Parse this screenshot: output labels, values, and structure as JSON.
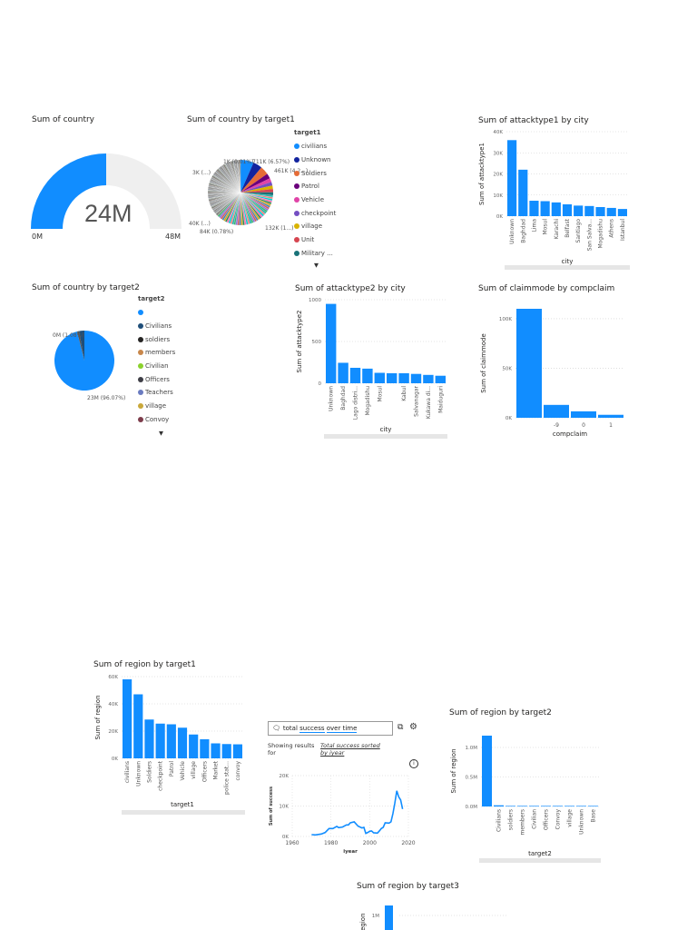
{
  "accent": "#118DFF",
  "gauge": {
    "title": "Sum of country",
    "value": "24M",
    "min": "0M",
    "max": "48M",
    "value_num": 24,
    "max_num": 48
  },
  "pie1": {
    "title": "Sum of country by target1",
    "legend_title": "target1",
    "legend": [
      {
        "label": "civilians",
        "color": "#118DFF"
      },
      {
        "label": "Unknown",
        "color": "#12239E"
      },
      {
        "label": "Soldiers",
        "color": "#E66C37"
      },
      {
        "label": "Patrol",
        "color": "#6B007B"
      },
      {
        "label": "Vehicle",
        "color": "#E044A7"
      },
      {
        "label": "checkpoint",
        "color": "#744EC2"
      },
      {
        "label": "village",
        "color": "#D9B300"
      },
      {
        "label": "Unit",
        "color": "#D64550"
      },
      {
        "label": "Military ...",
        "color": "#197278"
      }
    ],
    "labels": [
      "711K (6.57%)",
      "461K (4.2...)",
      "132K (1...)",
      "84K (0.78%)",
      "40K (...)",
      "3K (...)",
      "1K (0.01%)"
    ]
  },
  "pie2": {
    "title": "Sum of country by target2",
    "legend_title": "target2",
    "legend": [
      {
        "label": "",
        "color": "#118DFF"
      },
      {
        "label": "Civilians",
        "color": "#1F4E79"
      },
      {
        "label": "soldiers",
        "color": "#252423"
      },
      {
        "label": "members",
        "color": "#C8874B"
      },
      {
        "label": "Civilian",
        "color": "#8AD12C"
      },
      {
        "label": "Officers",
        "color": "#3E3E46"
      },
      {
        "label": "Teachers",
        "color": "#6A7BC0"
      },
      {
        "label": "village",
        "color": "#C9A83A"
      },
      {
        "label": "Convoy",
        "color": "#7D3C4B"
      }
    ],
    "labels": [
      "0M (1.08%)",
      "23M (96.07%)"
    ],
    "percent_main": 96.07,
    "percent_second": 1.08
  },
  "chart_data": [
    {
      "type": "bar",
      "title": "Sum of attacktype1 by city",
      "xlabel": "city",
      "ylabel": "Sum of attacktype1",
      "ylim": [
        0,
        40000
      ],
      "ticks": [
        "0K",
        "10K",
        "20K",
        "30K",
        "40K"
      ],
      "categories": [
        "Unknown",
        "Baghdad",
        "Lima",
        "Mosul",
        "Karachi",
        "Belfast",
        "Santiago",
        "San Salva...",
        "Mogadishu",
        "Athens",
        "Istanbul"
      ],
      "values": [
        36000,
        22000,
        7300,
        7100,
        6500,
        5600,
        5000,
        4800,
        4300,
        3900,
        3400
      ]
    },
    {
      "type": "bar",
      "title": "Sum of attacktype2 by city",
      "xlabel": "city",
      "ylabel": "Sum of attacktype2",
      "ylim": [
        0,
        1000
      ],
      "ticks": [
        "0",
        "500",
        "1000"
      ],
      "categories": [
        "Unknown",
        "Baghdad",
        "Lago distri...",
        "Mogadishu",
        "Mosul",
        "",
        "Kabul",
        "Salvanagar",
        "Kukawa di...",
        "Maiduguri"
      ],
      "values": [
        950,
        245,
        185,
        175,
        125,
        120,
        120,
        112,
        100,
        90
      ]
    },
    {
      "type": "bar",
      "title": "Sum of claimmode by compclaim",
      "xlabel": "compclaim",
      "ylabel": "Sum of claimmode",
      "ylim": [
        0,
        110000
      ],
      "ticks": [
        "0K",
        "50K",
        "100K"
      ],
      "tickvals": [
        0,
        50000,
        100000
      ],
      "categories": [
        "",
        "-9",
        "0",
        "1"
      ],
      "values": [
        110000,
        13000,
        6500,
        3000
      ]
    },
    {
      "type": "bar",
      "title": "Sum of region by target1",
      "xlabel": "target1",
      "ylabel": "Sum of region",
      "ylim": [
        0,
        60000
      ],
      "ticks": [
        "0K",
        "20K",
        "40K",
        "60K"
      ],
      "categories": [
        "civilians",
        "Unknown",
        "Soldiers",
        "checkpoint",
        "Patrol",
        "Vehicle",
        "village",
        "Officers",
        "Market",
        "police stat...",
        "convoy"
      ],
      "values": [
        58000,
        47000,
        28500,
        25500,
        25000,
        22500,
        17500,
        14000,
        11000,
        10500,
        10300
      ]
    },
    {
      "type": "line",
      "xlabel": "iyear",
      "ylabel": "Sum of success",
      "xlim": [
        1960,
        2020
      ],
      "ylim": [
        0,
        20000
      ],
      "xticks": [
        "1960",
        "1980",
        "2000",
        "2020"
      ],
      "yticks": [
        "0K",
        "10K",
        "20K"
      ],
      "x": [
        1970,
        1972,
        1975,
        1977,
        1979,
        1981,
        1983,
        1984,
        1986,
        1988,
        1989,
        1990,
        1992,
        1994,
        1996,
        1997,
        1998,
        1999,
        2000,
        2001,
        2002,
        2004,
        2005,
        2006,
        2007,
        2008,
        2010,
        2011,
        2012,
        2013,
        2014,
        2015,
        2016,
        2017
      ],
      "y": [
        600,
        500,
        800,
        1300,
        2600,
        2600,
        3300,
        2900,
        3100,
        3800,
        3800,
        4500,
        4800,
        3400,
        2800,
        3000,
        1000,
        1300,
        1700,
        1800,
        1200,
        1100,
        1800,
        2600,
        3000,
        4500,
        4400,
        4800,
        7500,
        11000,
        15000,
        13000,
        12000,
        9000
      ]
    },
    {
      "type": "bar",
      "title": "Sum of region by target2",
      "xlabel": "target2",
      "ylabel": "Sum of region",
      "ylim": [
        0,
        1200000
      ],
      "ticks": [
        "0.0M",
        "0.5M",
        "1.0M"
      ],
      "tickvals": [
        0,
        500000,
        1000000
      ],
      "categories": [
        "",
        "Civilians",
        "soldiers",
        "members",
        "Civilian",
        "Officers",
        "Convoy",
        "village",
        "Unknown",
        "Base"
      ],
      "values": [
        1200000,
        20000,
        10000,
        10000,
        10000,
        10000,
        10000,
        10000,
        10000,
        10000
      ]
    },
    {
      "type": "bar",
      "title": "Sum of region by target3",
      "ylabel": "Sum of region",
      "ticks": [
        "1M"
      ]
    }
  ],
  "qa": {
    "query_plain": "total ",
    "query_w1": "success",
    "query_w2": "over time",
    "showing": "Showing results for",
    "link": "Total success sorted by iyear"
  }
}
